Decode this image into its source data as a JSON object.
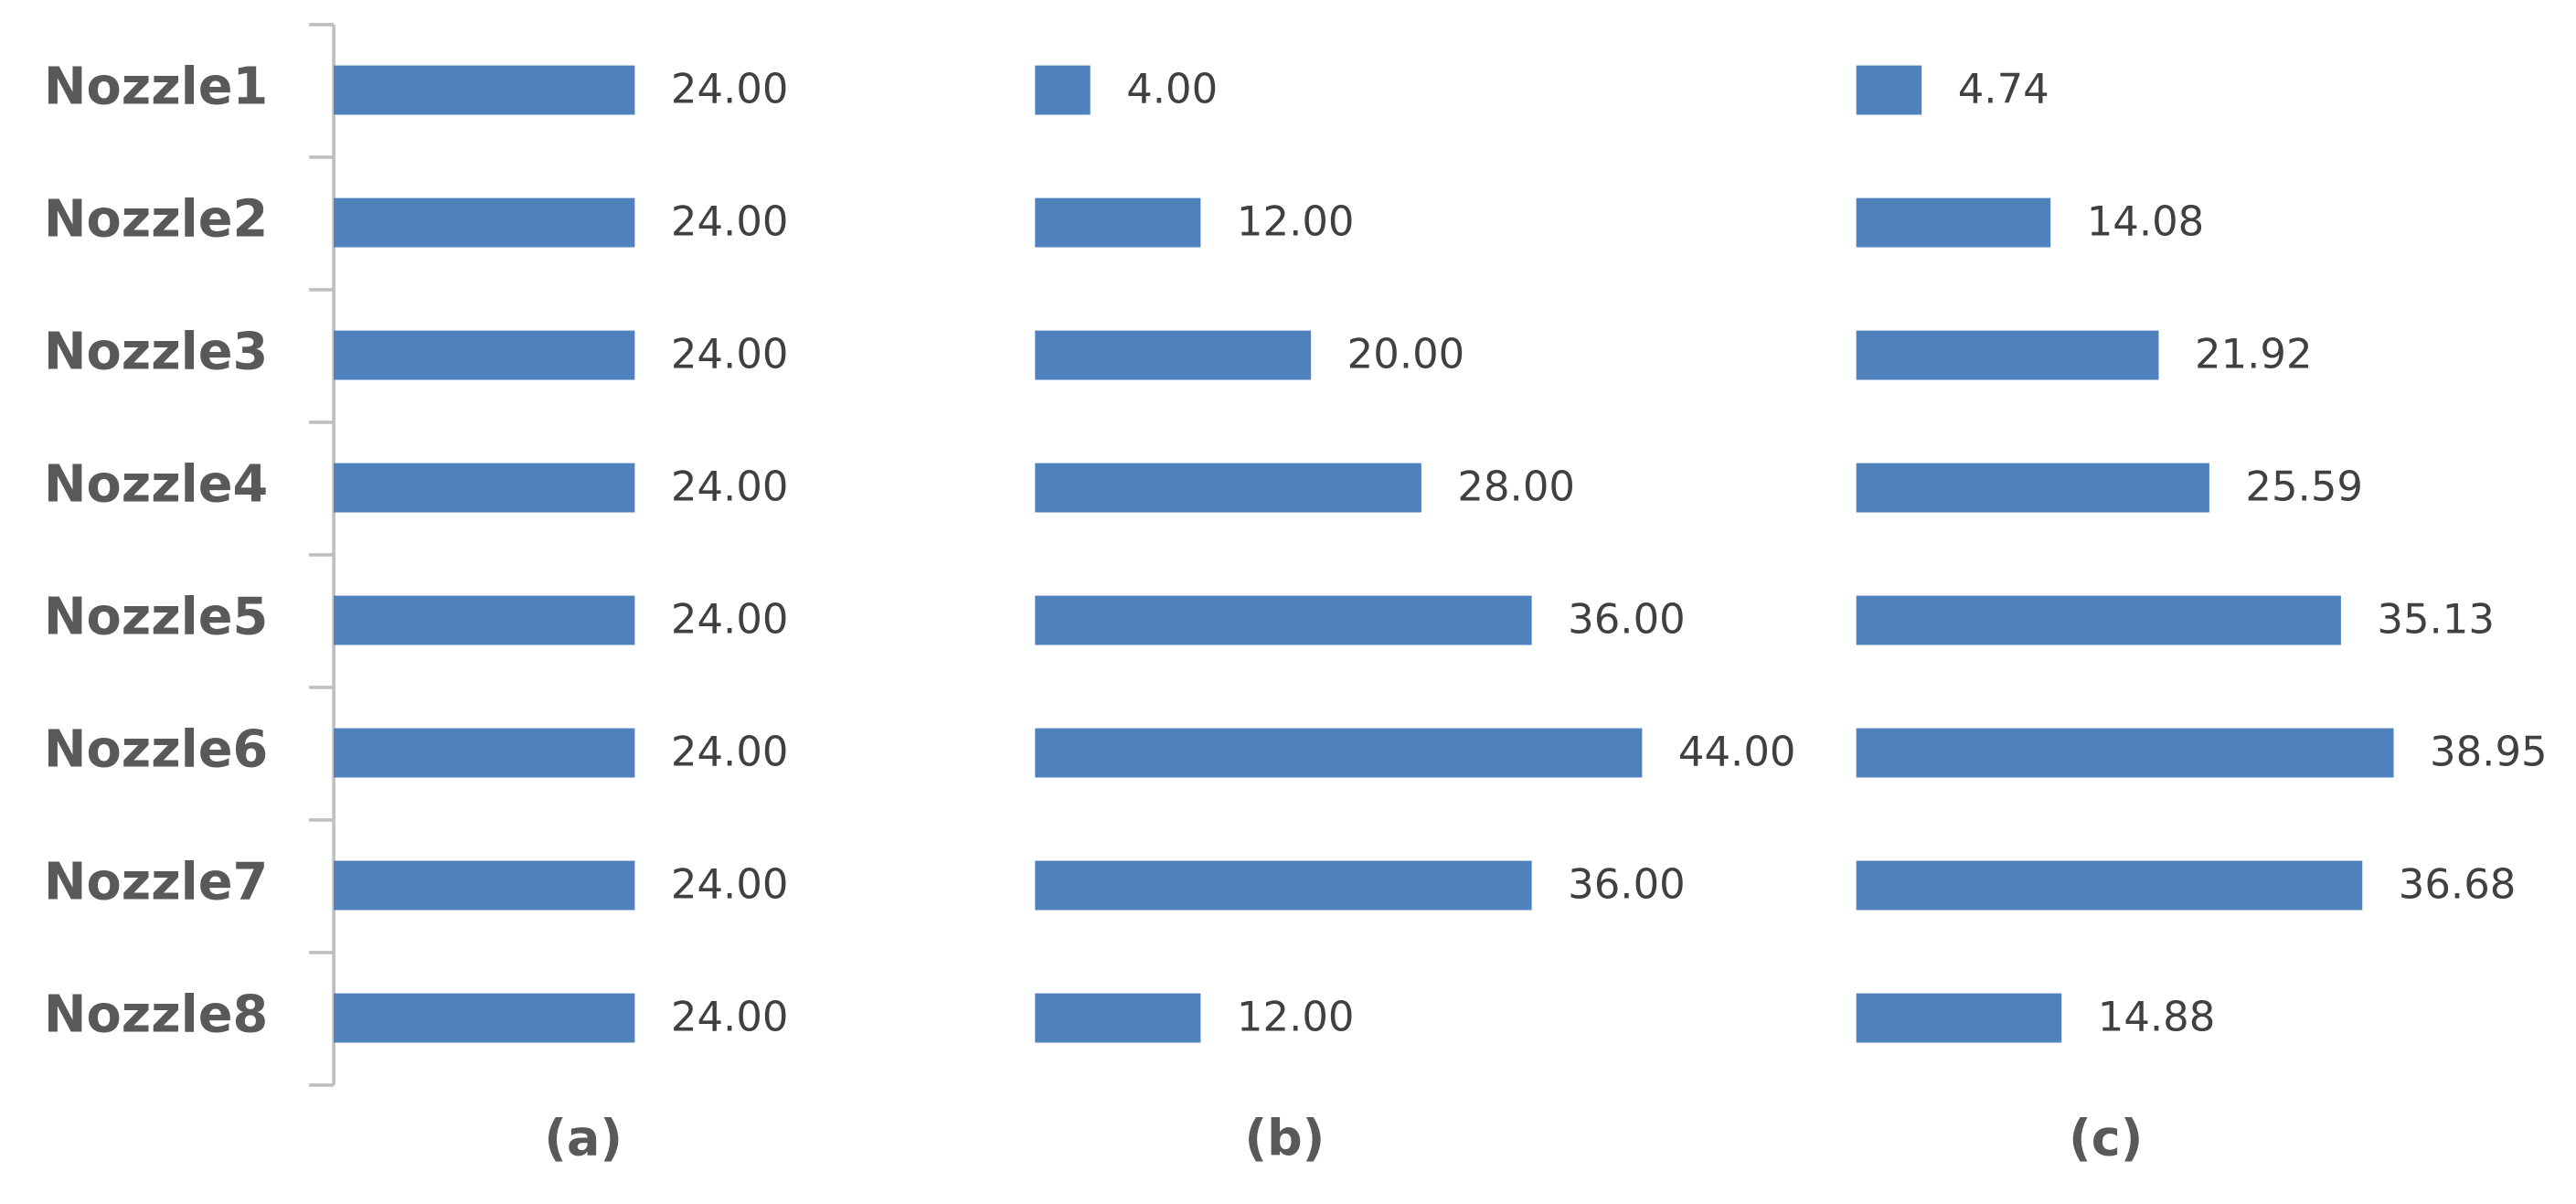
{
  "chart_data": [
    {
      "type": "bar",
      "title": "(a)",
      "orientation": "horizontal",
      "color": "#4f81bd",
      "categories": [
        "Nozzle1",
        "Nozzle2",
        "Nozzle3",
        "Nozzle4",
        "Nozzle5",
        "Nozzle6",
        "Nozzle7",
        "Nozzle8"
      ],
      "values": [
        24,
        24,
        24,
        24,
        24,
        24,
        24,
        24
      ],
      "value_labels": [
        "24.00",
        "24.00",
        "24.00",
        "24.00",
        "24.00",
        "24.00",
        "24.00",
        "24.00"
      ],
      "xlim": [
        0,
        55
      ]
    },
    {
      "type": "bar",
      "title": "(b)",
      "orientation": "horizontal",
      "color": "#4f81bd",
      "values": [
        4,
        12,
        20,
        28,
        36,
        44,
        36,
        12
      ],
      "value_labels": [
        "4.00",
        "12.00",
        "20.00",
        "28.00",
        "36.00",
        "44.00",
        "36.00",
        "12.00"
      ],
      "xlim": [
        0,
        50
      ]
    },
    {
      "type": "bar",
      "title": "(c)",
      "orientation": "horizontal",
      "color": "#4f81bd",
      "values": [
        4.74,
        14.08,
        21.92,
        25.59,
        35.13,
        38.95,
        36.68,
        14.88
      ],
      "value_labels": [
        "4.74",
        "14.08",
        "21.92",
        "25.59",
        "35.13",
        "38.95",
        "36.68",
        "14.88"
      ],
      "xlim": [
        0,
        50
      ]
    }
  ]
}
